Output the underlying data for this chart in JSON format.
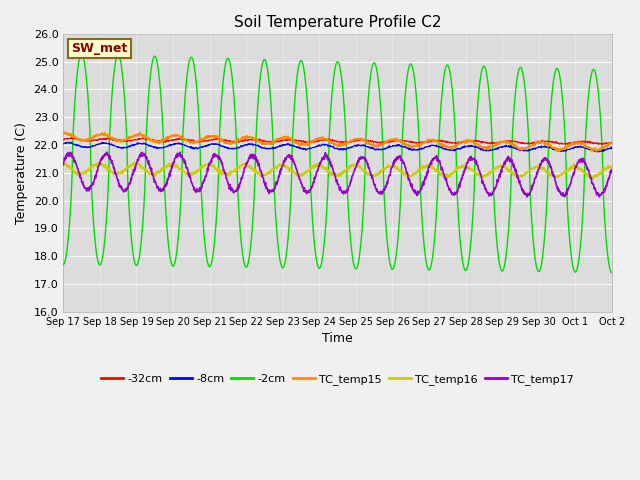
{
  "title": "Soil Temperature Profile C2",
  "xlabel": "Time",
  "ylabel": "Temperature (C)",
  "ylim": [
    16.0,
    26.0
  ],
  "yticks": [
    16.0,
    17.0,
    18.0,
    19.0,
    20.0,
    21.0,
    22.0,
    23.0,
    24.0,
    25.0,
    26.0
  ],
  "fig_bg": "#f0f0f0",
  "plot_bg": "#dcdcdc",
  "legend_label": "SW_met",
  "legend_box_bg": "#ffffcc",
  "legend_box_border": "#8b6914",
  "series_colors": {
    "32cm": "#ff0000",
    "8cm": "#0000ff",
    "2cm": "#00dd00",
    "TC_temp15": "#ff8c00",
    "TC_temp16": "#cccc00",
    "TC_temp17": "#9900cc"
  },
  "x_tick_labels": [
    "Sep 17",
    "Sep 18",
    "Sep 19",
    "Sep 20",
    "Sep 21",
    "Sep 22",
    "Sep 23",
    "Sep 24",
    "Sep 25",
    "Sep 26",
    "Sep 27",
    "Sep 28",
    "Sep 29",
    "Sep 30",
    "Oct 1",
    "Oct 2"
  ],
  "n_points": 1500,
  "days": 15
}
